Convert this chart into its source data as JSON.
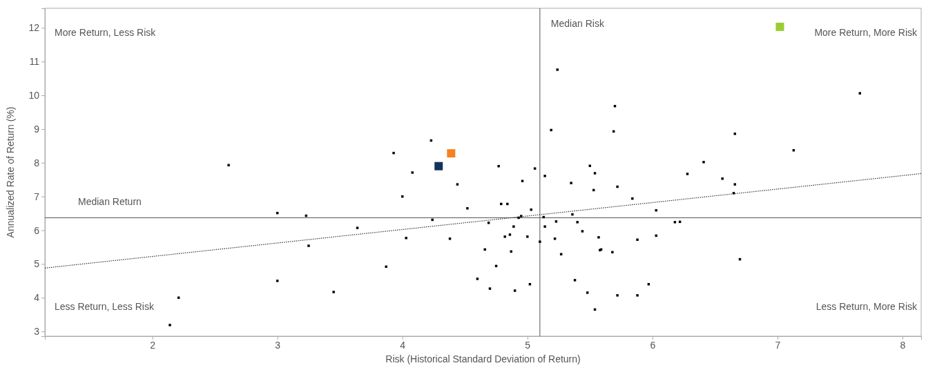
{
  "chart_data": {
    "type": "scatter",
    "xlabel": "Risk (Historical Standard Deviation of Return)",
    "ylabel": "Annualized Rate of Return (%)",
    "xlim": [
      1.14,
      8.15
    ],
    "xticks": [
      2,
      3,
      4,
      5,
      6,
      7,
      8
    ],
    "ylim": [
      2.86,
      12.58
    ],
    "yticks": [
      3,
      4,
      5,
      6,
      7,
      8,
      9,
      10,
      11,
      12
    ],
    "grid": false,
    "marker": "square",
    "series": [
      {
        "color": "#000000",
        "x": [
          2.14,
          2.21,
          2.61,
          3.0,
          3.0,
          3.23,
          3.25,
          3.45,
          3.64,
          3.87,
          3.93,
          4.0,
          4.03,
          4.08,
          4.23,
          4.24,
          4.38,
          4.44,
          4.52,
          4.6,
          4.66,
          4.69,
          4.7,
          4.75,
          4.77,
          4.79,
          4.82,
          4.84,
          4.86,
          4.87,
          4.89,
          4.9,
          4.93,
          4.95,
          4.96,
          5.0,
          5.02,
          5.03,
          5.06,
          5.1,
          5.13,
          5.14,
          5.14,
          5.19,
          5.22,
          5.23,
          5.24,
          5.27,
          5.35,
          5.36,
          5.38,
          5.4,
          5.44,
          5.48,
          5.5,
          5.53,
          5.54,
          5.54,
          5.57,
          5.58,
          5.59,
          5.68,
          5.69,
          5.7,
          5.72,
          5.72,
          5.84,
          5.88,
          5.88,
          5.97,
          6.03,
          6.03,
          6.18,
          6.22,
          6.28,
          6.41,
          6.56,
          6.65,
          6.66,
          6.66,
          6.7,
          7.13,
          7.66
        ],
        "values": [
          3.19,
          4.0,
          7.93,
          6.51,
          4.5,
          6.43,
          5.54,
          4.17,
          6.07,
          4.92,
          8.29,
          7.0,
          5.77,
          7.71,
          8.66,
          6.31,
          5.75,
          7.36,
          6.65,
          4.56,
          5.43,
          6.22,
          4.27,
          4.94,
          7.9,
          6.78,
          5.81,
          6.78,
          5.87,
          5.37,
          6.11,
          4.21,
          6.37,
          6.42,
          7.46,
          5.81,
          4.4,
          6.61,
          7.83,
          5.66,
          6.39,
          6.11,
          7.61,
          8.97,
          5.75,
          6.26,
          10.76,
          5.29,
          7.4,
          6.47,
          4.52,
          6.24,
          5.97,
          4.15,
          7.91,
          7.19,
          7.69,
          3.65,
          5.79,
          5.41,
          5.43,
          5.35,
          8.93,
          9.68,
          7.29,
          4.07,
          6.94,
          5.72,
          4.07,
          4.4,
          6.59,
          5.84,
          6.24,
          6.25,
          7.67,
          8.02,
          7.53,
          7.1,
          7.36,
          8.86,
          5.14,
          8.37,
          10.06
        ]
      },
      {
        "color": "#f58220",
        "x": [
          4.39
        ],
        "values": [
          8.28
        ]
      },
      {
        "color": "#13335e",
        "x": [
          4.29
        ],
        "values": [
          7.9
        ]
      },
      {
        "color": "#9acd32",
        "x": [
          7.02
        ],
        "values": [
          12.03
        ]
      },
      {
        "type": "line",
        "color": "#333333",
        "line_style": "dotted",
        "marker": "none",
        "x": [
          1.14,
          8.15
        ],
        "values": [
          4.88,
          7.68
        ]
      }
    ],
    "ref_lines": [
      {
        "axis": "x",
        "value": 5.1,
        "label": "Median Risk",
        "color": "#555555"
      },
      {
        "axis": "y",
        "value": 6.37,
        "label": "Median Return",
        "color": "#555555"
      }
    ],
    "annotations": [
      "More Return, Less Risk",
      "More Return, More Risk",
      "Less Return, Less Risk",
      "Less Return, More Risk"
    ]
  }
}
